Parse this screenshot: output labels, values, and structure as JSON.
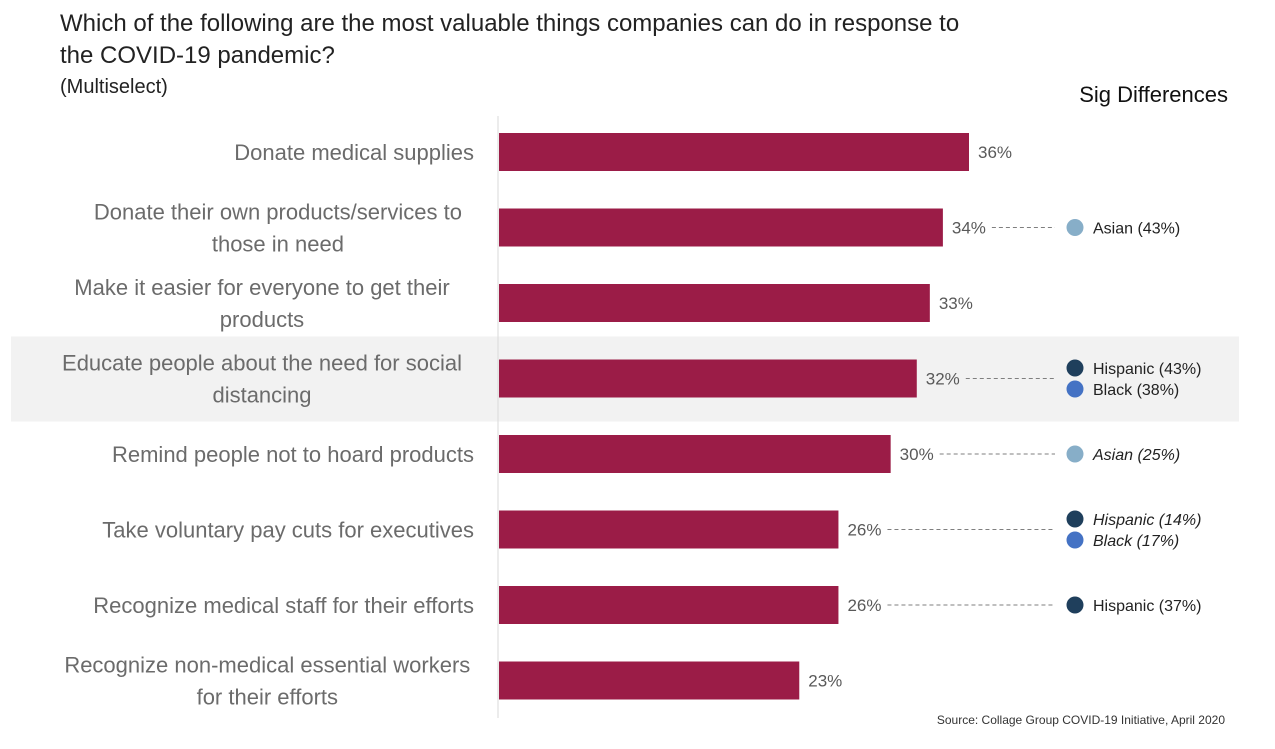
{
  "title": "Which of the following are the most valuable things companies can do in response to the COVID-19 pandemic?",
  "subtitle": "(Multiselect)",
  "sig_header": "Sig Differences",
  "source": "Source: Collage Group COVID-19 Initiative, April 2020",
  "colors": {
    "bar": "#9b1c47",
    "highlight_band": "#f2f2f2",
    "asian": "#87aec8",
    "hispanic": "#1f3f5c",
    "black": "#4472c4"
  },
  "chart_data": {
    "type": "bar",
    "orientation": "horizontal",
    "categories": [
      [
        "Donate medical supplies"
      ],
      [
        "Donate their own products/services to",
        "those in need"
      ],
      [
        "Make it easier for everyone to get their",
        "products"
      ],
      [
        "Educate people about the need for social",
        "distancing"
      ],
      [
        "Remind people not to hoard products"
      ],
      [
        "Take voluntary pay cuts for executives"
      ],
      [
        "Recognize medical staff for their efforts"
      ],
      [
        "Recognize non-medical essential workers",
        "for their efforts"
      ]
    ],
    "values": [
      36,
      34,
      33,
      32,
      30,
      26,
      26,
      23
    ],
    "value_labels": [
      "36%",
      "34%",
      "33%",
      "32%",
      "30%",
      "26%",
      "26%",
      "23%"
    ],
    "xlim": [
      0,
      38
    ],
    "highlighted_category_index": 3,
    "sig_differences": [
      [],
      [
        {
          "label": "Asian (43%)",
          "group": "asian",
          "italic": false
        }
      ],
      [],
      [
        {
          "label": "Hispanic (43%)",
          "group": "hispanic",
          "italic": false
        },
        {
          "label": "Black (38%)",
          "group": "black",
          "italic": false
        }
      ],
      [
        {
          "label": "Asian (25%)",
          "group": "asian",
          "italic": true
        }
      ],
      [
        {
          "label": "Hispanic (14%)",
          "group": "hispanic",
          "italic": true
        },
        {
          "label": "Black (17%)",
          "group": "black",
          "italic": true
        }
      ],
      [
        {
          "label": "Hispanic (37%)",
          "group": "hispanic",
          "italic": false
        }
      ],
      []
    ]
  }
}
